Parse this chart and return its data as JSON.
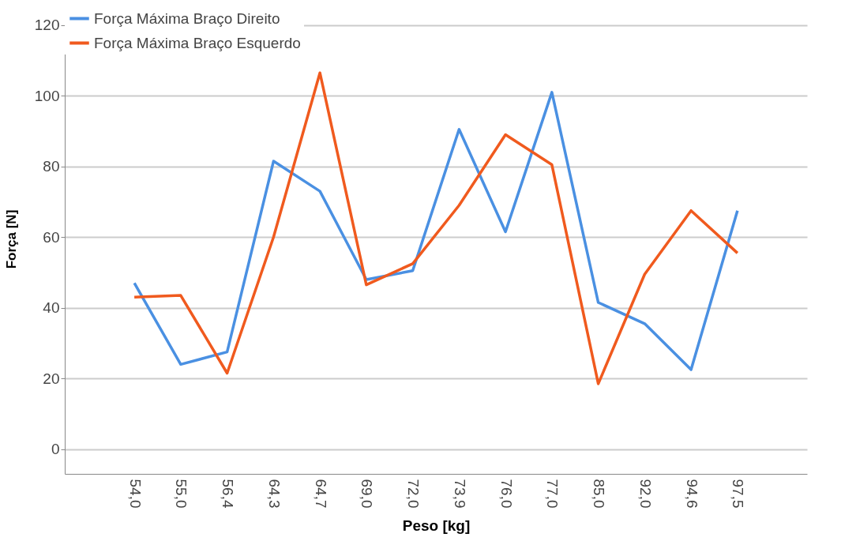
{
  "chart_data": {
    "type": "line",
    "xlabel": "Peso [kg]",
    "ylabel": "Força [N]",
    "categories": [
      "54,0",
      "55,0",
      "56,4",
      "64,3",
      "64,7",
      "69,0",
      "72,0",
      "73,9",
      "76,0",
      "77,0",
      "85,0",
      "92,0",
      "94,6",
      "97,5"
    ],
    "series": [
      {
        "name": "Força Máxima Braço Direito",
        "color": "#4a90e2",
        "values": [
          47,
          24,
          27.5,
          81.5,
          73,
          48,
          50.5,
          90.5,
          61.5,
          101,
          41.5,
          35.5,
          22.5,
          67.5
        ]
      },
      {
        "name": "Força Máxima Braço Esquerdo",
        "color": "#f05a1e",
        "values": [
          43,
          43.5,
          21.5,
          60,
          106.5,
          46.5,
          52.5,
          69,
          89,
          80.5,
          18.5,
          49.5,
          67.5,
          55.5
        ]
      }
    ],
    "ylim": [
      -7,
      126
    ],
    "yticks": [
      0,
      20,
      40,
      60,
      80,
      100,
      120
    ],
    "grid": "y",
    "legend": "top left",
    "marker": "none",
    "line_style": "solid"
  }
}
